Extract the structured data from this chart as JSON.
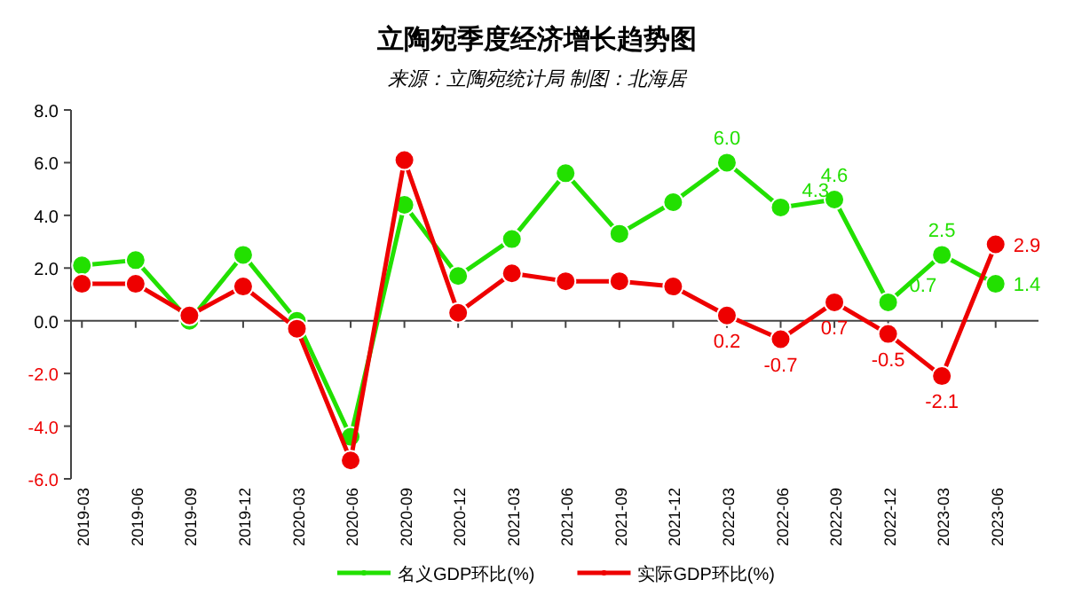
{
  "chart_data": {
    "type": "line",
    "title": "立陶宛季度经济增长趋势图",
    "subtitle": "来源：立陶宛统计局 制图：北海居",
    "categories": [
      "2019-03",
      "2019-06",
      "2019-09",
      "2019-12",
      "2020-03",
      "2020-06",
      "2020-09",
      "2020-12",
      "2021-03",
      "2021-06",
      "2021-09",
      "2021-12",
      "2022-03",
      "2022-06",
      "2022-09",
      "2022-12",
      "2023-03",
      "2023-06"
    ],
    "series": [
      {
        "name": "名义GDP环比(%)",
        "color": "#22e000",
        "values": [
          2.1,
          2.3,
          0.0,
          2.5,
          0.0,
          -4.4,
          4.4,
          1.7,
          3.1,
          5.6,
          3.3,
          4.5,
          6.0,
          4.3,
          4.6,
          0.7,
          2.5,
          1.4
        ],
        "value_labels": [
          null,
          null,
          null,
          null,
          null,
          null,
          null,
          null,
          null,
          null,
          null,
          null,
          "6.0",
          "4.3",
          "4.6",
          "0.7",
          "2.5",
          "1.4"
        ]
      },
      {
        "name": "实际GDP环比(%)",
        "color": "#ee0000",
        "values": [
          1.4,
          1.4,
          0.2,
          1.3,
          -0.3,
          -5.3,
          6.1,
          0.3,
          1.8,
          1.5,
          1.5,
          1.3,
          0.2,
          -0.7,
          0.7,
          -0.5,
          -2.1,
          2.9
        ],
        "value_labels": [
          null,
          null,
          null,
          null,
          null,
          null,
          null,
          null,
          null,
          null,
          null,
          null,
          "0.2",
          "-0.7",
          "0.7",
          "-0.5",
          "-2.1",
          "2.9"
        ]
      }
    ],
    "ylim": [
      -6,
      8
    ],
    "yticks": [
      {
        "value": -6,
        "label": "-6.0"
      },
      {
        "value": -4,
        "label": "-4.0"
      },
      {
        "value": -2,
        "label": "-2.0"
      },
      {
        "value": 0,
        "label": "0.0"
      },
      {
        "value": 2,
        "label": "2.0"
      },
      {
        "value": 4,
        "label": "4.0"
      },
      {
        "value": 6,
        "label": "6.0"
      },
      {
        "value": 8,
        "label": "8.0"
      }
    ],
    "legend": "bottom",
    "marker": "circle",
    "line_style": "solid"
  }
}
